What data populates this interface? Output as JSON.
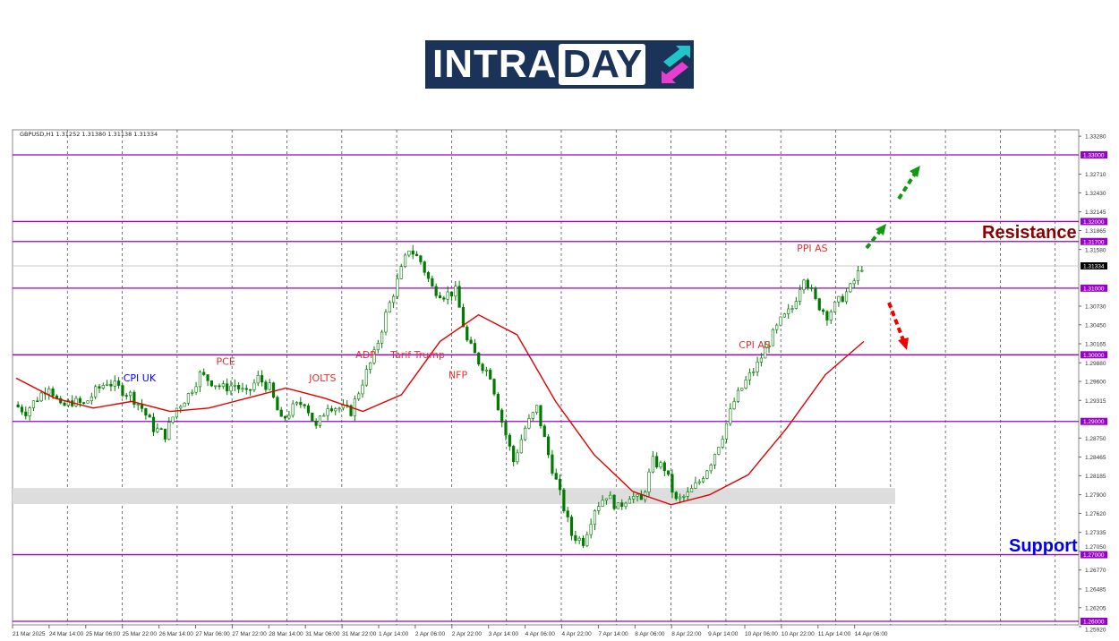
{
  "logo": {
    "text_part1": "INTRA",
    "text_part2": "DAY"
  },
  "chart_data": {
    "type": "candlestick",
    "symbol_header": "GBPUSD,H1  1.31252 1.31380 1.31138 1.31334",
    "current_price": 1.31334,
    "ylim": [
      1.2592,
      1.3328
    ],
    "y_ticks": [
      1.3328,
      1.3271,
      1.3243,
      1.32145,
      1.31865,
      1.3158,
      1.3073,
      1.3045,
      1.30165,
      1.2988,
      1.296,
      1.29315,
      1.2875,
      1.28465,
      1.28185,
      1.279,
      1.2762,
      1.27335,
      1.2705,
      1.2677,
      1.26485,
      1.26205,
      1.2592
    ],
    "x_ticks": [
      "21 Mar 2025",
      "24 Mar 14:00",
      "25 Mar 06:00",
      "25 Mar 22:00",
      "26 Mar 14:00",
      "27 Mar 06:00",
      "27 Mar 22:00",
      "28 Mar 14:00",
      "31 Mar 06:00",
      "31 Mar 22:00",
      "1 Apr 14:00",
      "2 Apr 06:00",
      "2 Apr 22:00",
      "3 Apr 14:00",
      "4 Apr 06:00",
      "4 Apr 22:00",
      "7 Apr 14:00",
      "8 Apr 06:00",
      "8 Apr 22:00",
      "9 Apr 14:00",
      "10 Apr 06:00",
      "10 Apr 22:00",
      "11 Apr 14:00",
      "14 Apr 06:00"
    ],
    "closes": [
      1.2925,
      1.2915,
      1.2935,
      1.2955,
      1.292,
      1.293,
      1.2925,
      1.2945,
      1.296,
      1.295,
      1.294,
      1.292,
      1.289,
      1.288,
      1.292,
      1.294,
      1.297,
      1.296,
      1.295,
      1.2955,
      1.294,
      1.2965,
      1.295,
      1.29,
      1.292,
      1.293,
      1.289,
      1.2925,
      1.292,
      1.2915,
      1.296,
      1.3,
      1.306,
      1.311,
      1.316,
      1.314,
      1.31,
      1.309,
      1.3095,
      1.302,
      1.299,
      1.297,
      1.29,
      1.284,
      1.289,
      1.292,
      1.285,
      1.279,
      1.273,
      1.272,
      1.277,
      1.279,
      1.277,
      1.279,
      1.278,
      1.284,
      1.283,
      1.278,
      1.279,
      1.281,
      1.284,
      1.288,
      1.293,
      1.296,
      1.2985,
      1.302,
      1.305,
      1.307,
      1.312,
      1.308,
      1.306,
      1.308,
      1.31,
      1.3133
    ],
    "moving_average": [
      1.2965,
      1.2935,
      1.292,
      1.293,
      1.2915,
      1.292,
      1.2935,
      1.295,
      1.2935,
      1.2915,
      1.294,
      1.302,
      1.306,
      1.303,
      1.293,
      1.285,
      1.2795,
      1.2775,
      1.279,
      1.282,
      1.289,
      1.297,
      1.302
    ],
    "levels": [
      1.33,
      1.32,
      1.317,
      1.31,
      1.3,
      1.29,
      1.27,
      1.26
    ],
    "level_labels": [
      "1.33000",
      "1.32000",
      "1.31700",
      "1.31000",
      "1.30000",
      "1.29000",
      "1.27000",
      "1.26000"
    ],
    "zone": [
      1.2776,
      1.28
    ],
    "annotations": [
      {
        "text": "CPI UK",
        "color": "#0000ff",
        "price": 1.296,
        "bar": 10
      },
      {
        "text": "PCE",
        "color": "#e03030",
        "price": 1.2985,
        "bar": 18
      },
      {
        "text": "JOLTS",
        "color": "#e03030",
        "price": 1.296,
        "bar": 26
      },
      {
        "text": "ADP",
        "color": "#e03030",
        "price": 1.2995,
        "bar": 30
      },
      {
        "text": "Tarif Trump",
        "color": "#e03030",
        "price": 1.2995,
        "bar": 33
      },
      {
        "text": "NFP",
        "color": "#e03030",
        "price": 1.2965,
        "bar": 38
      },
      {
        "text": "CPI AS",
        "color": "#e03030",
        "price": 1.301,
        "bar": 63
      },
      {
        "text": "PPI AS",
        "color": "#e03030",
        "price": 1.3155,
        "bar": 68
      }
    ],
    "resistance_label": "Resistance",
    "support_label": "Support",
    "colors": {
      "level": "#9900cc",
      "ma": "#e00000",
      "candle": "#007a00",
      "resistance": "#8b0000",
      "support": "#0000ee",
      "bull_arrow": "#119911",
      "bear_arrow": "#ee0000"
    }
  }
}
